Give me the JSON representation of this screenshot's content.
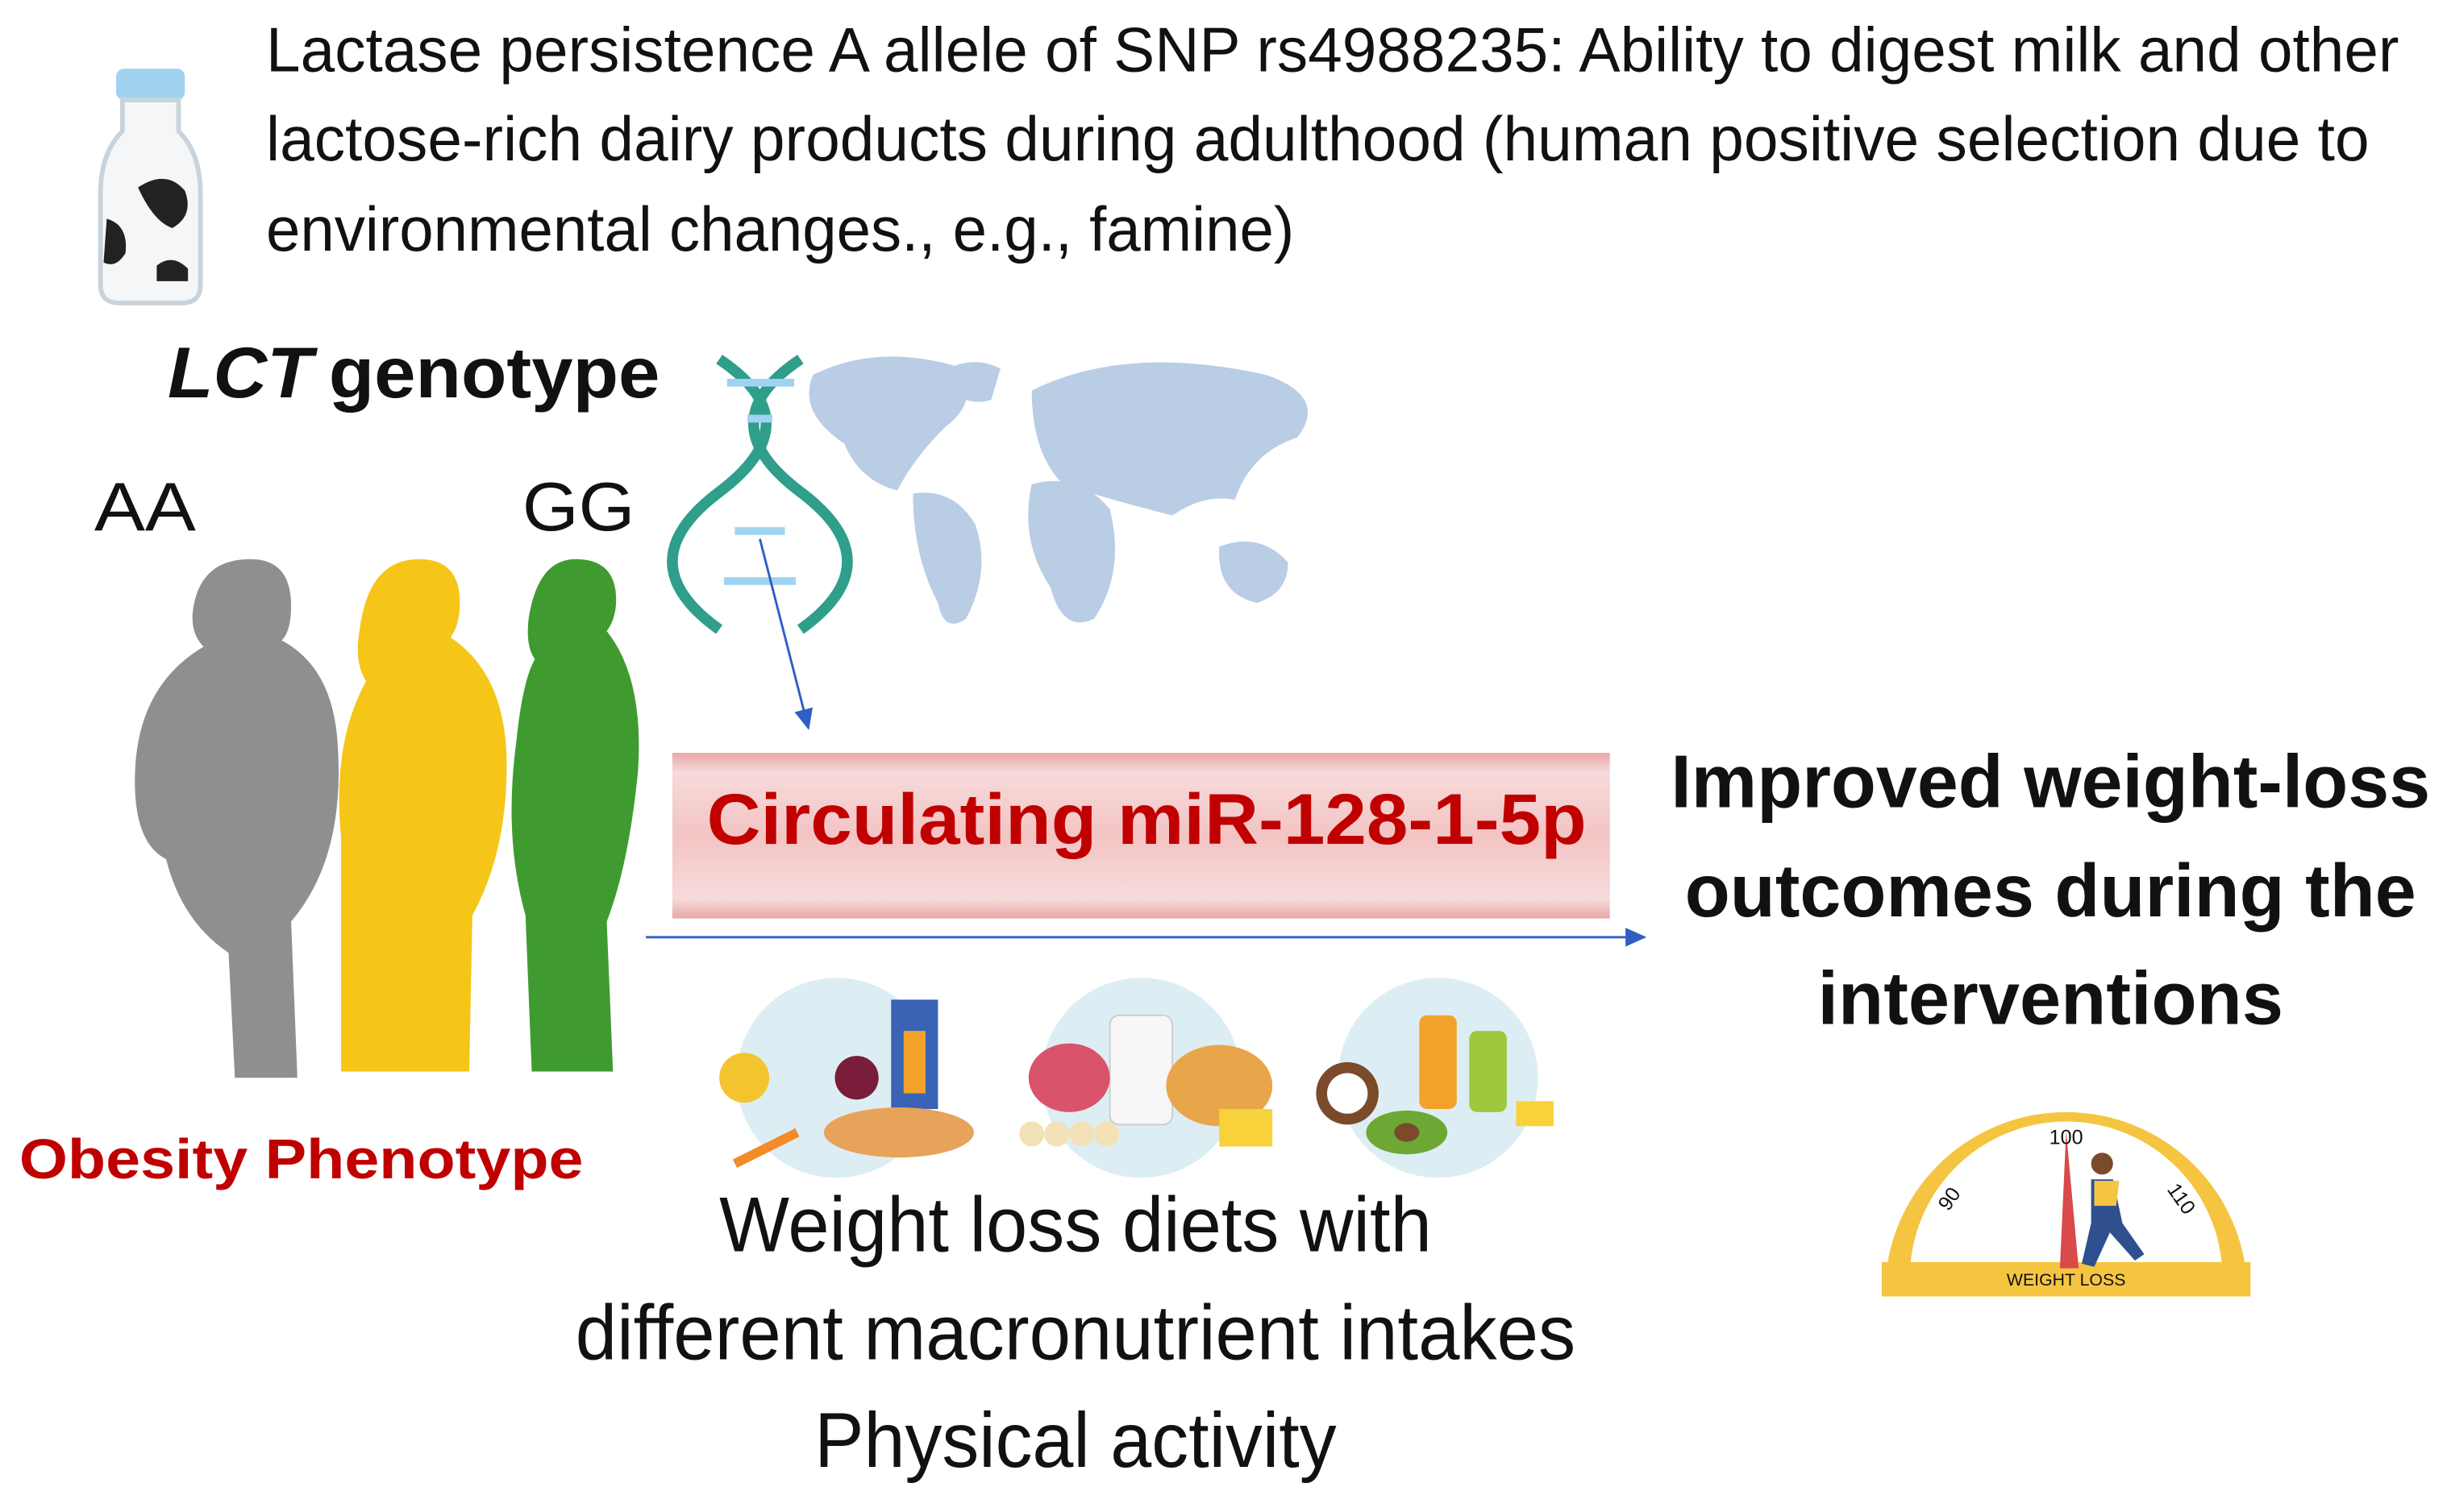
{
  "header": {
    "lines": [
      "Lactase persistence A allele of SNP rs4988235: Ability to digest milk and other",
      "lactose-rich dairy products during adulthood (human positive selection due to",
      "environmental changes., e.g., famine)"
    ]
  },
  "genotype": {
    "gene": "LCT",
    "label": "genotype",
    "left": "AA",
    "right": "GG"
  },
  "phenotype": "Obesity Phenotype",
  "vessel": "Circulating miR-128-1-5p",
  "outcome": {
    "lines": [
      "Improved weight-loss",
      "outcomes during the",
      "interventions"
    ]
  },
  "interventions": {
    "lines": [
      "Weight loss diets with",
      "different macronutrient intakes",
      "Physical activity"
    ]
  },
  "gauge": {
    "left": "90",
    "center": "100",
    "right": "110",
    "caption": "WEIGHT LOSS"
  }
}
